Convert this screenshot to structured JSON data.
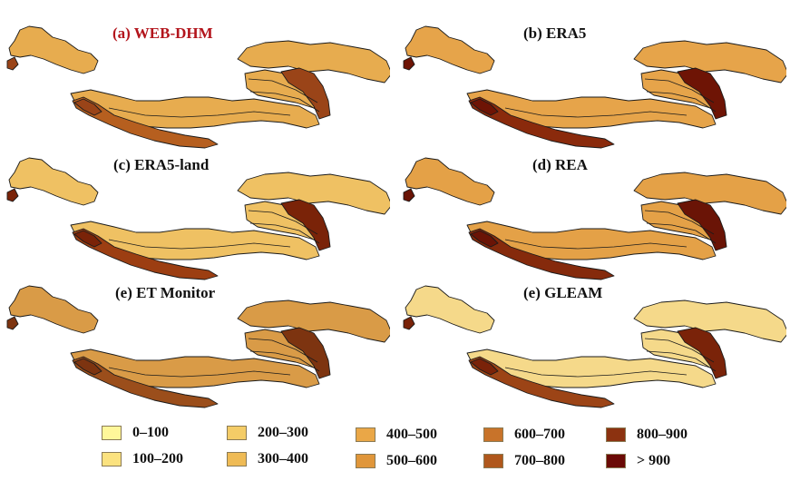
{
  "panels": [
    {
      "id": "a",
      "title": "(a) WEB-DHM",
      "title_color": "#b3151c",
      "fill": "#e7ac4f",
      "south_fill": "#b65f1f",
      "hot_fill": "#9a4418"
    },
    {
      "id": "b",
      "title": "(b) ERA5",
      "title_color": "#111111",
      "fill": "#e6a44a",
      "south_fill": "#8a2a0c",
      "hot_fill": "#6e1405"
    },
    {
      "id": "c",
      "title": "(c) ERA5-land",
      "title_color": "#111111",
      "fill": "#efc163",
      "south_fill": "#9c3e12",
      "hot_fill": "#7a2308"
    },
    {
      "id": "d",
      "title": "(d) REA",
      "title_color": "#111111",
      "fill": "#e4a147",
      "south_fill": "#852a0c",
      "hot_fill": "#6a1406"
    },
    {
      "id": "e",
      "title": "(e) ET Monitor",
      "title_color": "#111111",
      "fill": "#d99b47",
      "south_fill": "#9b4e1b",
      "hot_fill": "#7d3410"
    },
    {
      "id": "f",
      "title": "(e) GLEAM",
      "title_color": "#111111",
      "fill": "#f5d98a",
      "south_fill": "#9c4416",
      "hot_fill": "#7a2309"
    }
  ],
  "legend": [
    {
      "label": "0–100",
      "color": "#fff79a"
    },
    {
      "label": "100–200",
      "color": "#fbe27f"
    },
    {
      "label": "200–300",
      "color": "#f4cc67"
    },
    {
      "label": "300–400",
      "color": "#efbb55"
    },
    {
      "label": "400–500",
      "color": "#eaa747"
    },
    {
      "label": "500–600",
      "color": "#e0963a"
    },
    {
      "label": "600–700",
      "color": "#c8732a"
    },
    {
      "label": "700–800",
      "color": "#b0571c"
    },
    {
      "label": "800–900",
      "color": "#8c3210"
    },
    {
      "label": "> 900",
      "color": "#6b0a06"
    }
  ]
}
